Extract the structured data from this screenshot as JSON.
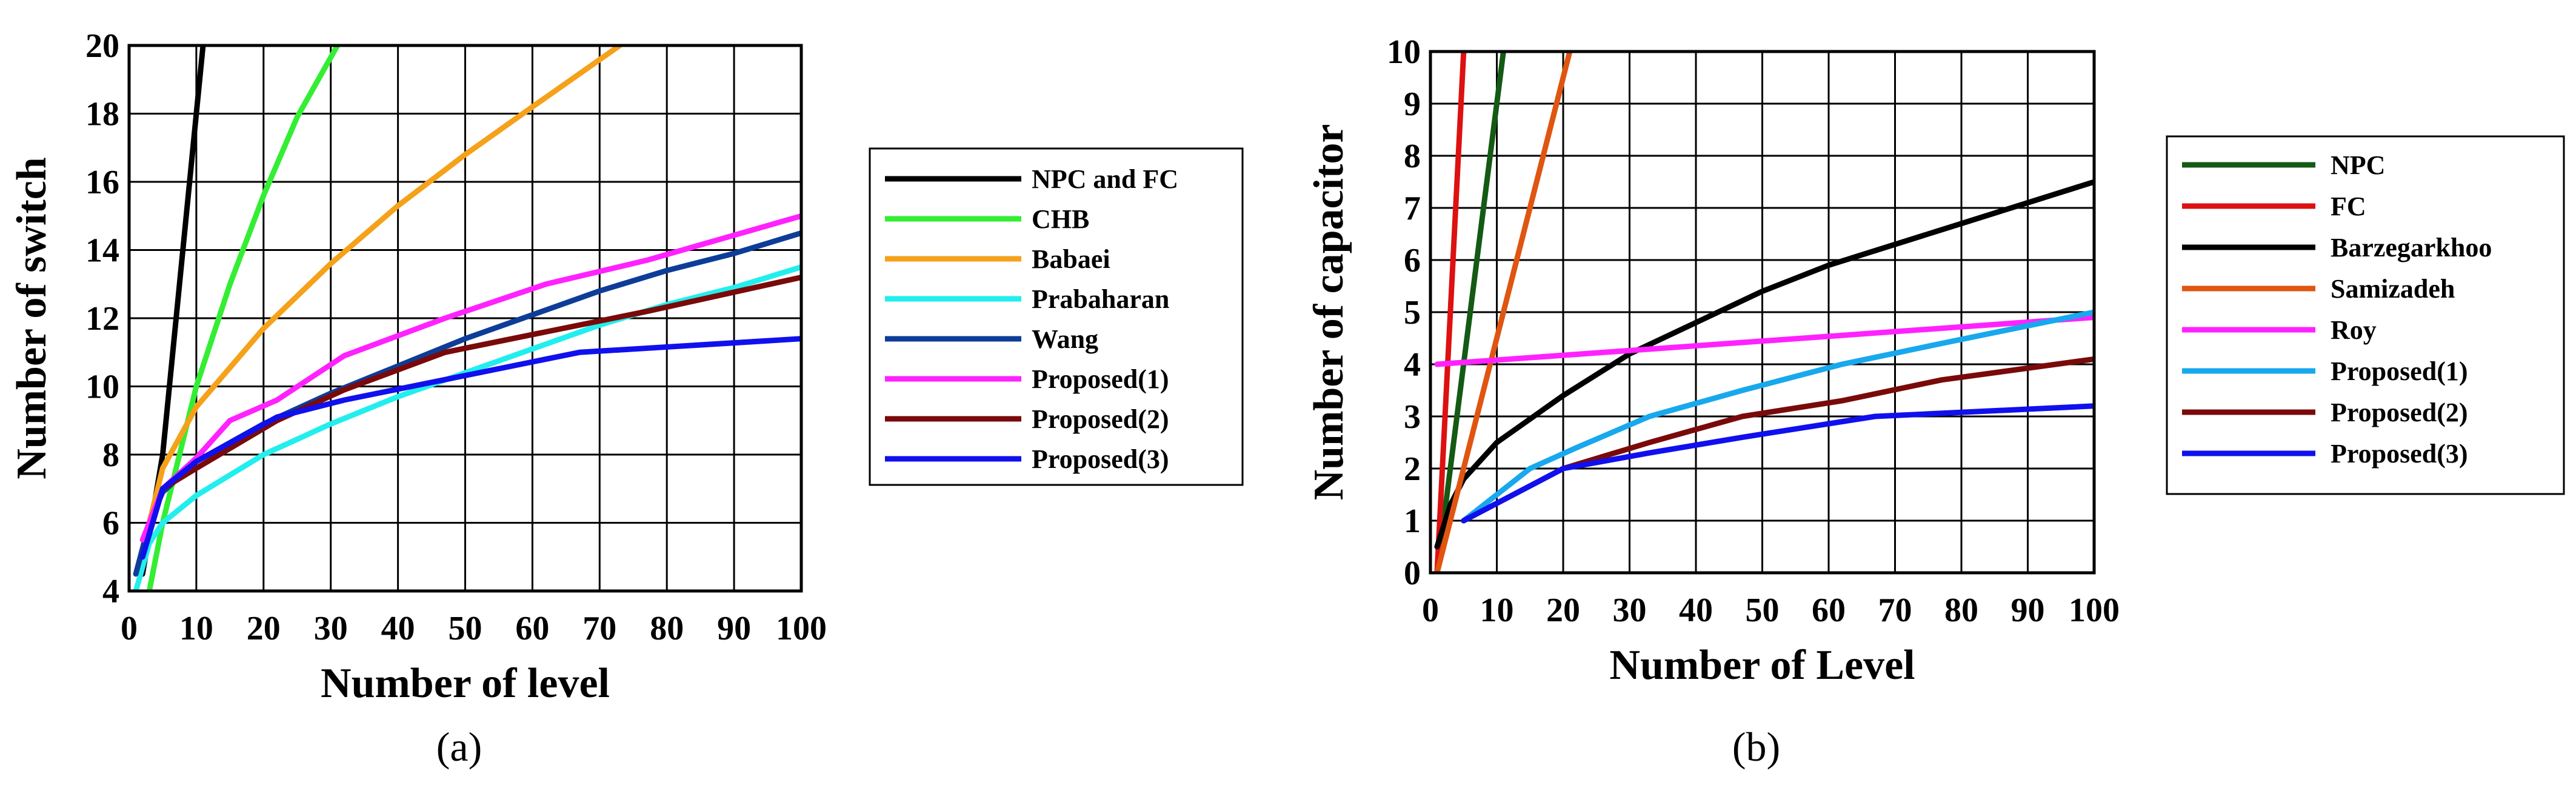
{
  "chart_data": [
    {
      "panel": "(a)",
      "type": "line",
      "xlabel": "Number of level",
      "ylabel": "Number of switch",
      "xlim": [
        0,
        100
      ],
      "ylim": [
        4,
        20
      ],
      "xticks": [
        0,
        10,
        20,
        30,
        40,
        50,
        60,
        70,
        80,
        90,
        100
      ],
      "yticks": [
        4,
        6,
        8,
        10,
        12,
        14,
        16,
        18,
        20
      ],
      "grid": true,
      "legend_position": "right",
      "series": [
        {
          "name": "NPC and FC",
          "color": "#000000",
          "points": [
            [
              2,
              4.5
            ],
            [
              5,
              8
            ],
            [
              8,
              14
            ],
            [
              11,
              20
            ]
          ]
        },
        {
          "name": "CHB",
          "color": "#33ee33",
          "points": [
            [
              3,
              4
            ],
            [
              5,
              6
            ],
            [
              10,
              10
            ],
            [
              15,
              13
            ],
            [
              20,
              15.6
            ],
            [
              25,
              17.9
            ],
            [
              31,
              20
            ]
          ]
        },
        {
          "name": "Babaei",
          "color": "#f5a11a",
          "points": [
            [
              3,
              6
            ],
            [
              5,
              7.6
            ],
            [
              10,
              9.4
            ],
            [
              20,
              11.7
            ],
            [
              30,
              13.6
            ],
            [
              40,
              15.3
            ],
            [
              50,
              16.8
            ],
            [
              60,
              18.2
            ],
            [
              73,
              20
            ]
          ]
        },
        {
          "name": "Prabaharan",
          "color": "#22eeee",
          "points": [
            [
              1,
              4
            ],
            [
              3,
              5.4
            ],
            [
              5,
              6
            ],
            [
              10,
              6.8
            ],
            [
              20,
              8
            ],
            [
              30,
              8.9
            ],
            [
              40,
              9.7
            ],
            [
              50,
              10.4
            ],
            [
              60,
              11.1
            ],
            [
              70,
              11.8
            ],
            [
              80,
              12.4
            ],
            [
              90,
              12.9
            ],
            [
              100,
              13.5
            ]
          ]
        },
        {
          "name": "Wang",
          "color": "#0d3d99",
          "points": [
            [
              1,
              4.5
            ],
            [
              3,
              6
            ],
            [
              5,
              6.9
            ],
            [
              10,
              7.8
            ],
            [
              20,
              8.9
            ],
            [
              30,
              9.8
            ],
            [
              40,
              10.6
            ],
            [
              50,
              11.4
            ],
            [
              60,
              12.1
            ],
            [
              70,
              12.8
            ],
            [
              80,
              13.4
            ],
            [
              90,
              13.9
            ],
            [
              100,
              14.5
            ]
          ]
        },
        {
          "name": "Proposed(1)",
          "color": "#ff22ff",
          "points": [
            [
              2,
              5.5
            ],
            [
              5,
              7
            ],
            [
              10,
              7.9
            ],
            [
              15,
              9
            ],
            [
              22,
              9.6
            ],
            [
              32,
              10.9
            ],
            [
              47,
              12
            ],
            [
              62,
              13
            ],
            [
              77,
              13.7
            ],
            [
              100,
              15
            ]
          ]
        },
        {
          "name": "Proposed(2)",
          "color": "#7a0a0a",
          "points": [
            [
              2,
              5
            ],
            [
              5,
              7
            ],
            [
              10,
              7.6
            ],
            [
              22,
              9
            ],
            [
              32,
              9.9
            ],
            [
              47,
              11
            ],
            [
              62,
              11.6
            ],
            [
              77,
              12.2
            ],
            [
              100,
              13.2
            ]
          ]
        },
        {
          "name": "Proposed(3)",
          "color": "#1010ee",
          "points": [
            [
              2,
              5
            ],
            [
              5,
              7
            ],
            [
              10,
              7.8
            ],
            [
              22,
              9.1
            ],
            [
              32,
              9.6
            ],
            [
              47,
              10.2
            ],
            [
              67,
              11
            ],
            [
              100,
              11.4
            ]
          ]
        }
      ]
    },
    {
      "panel": "(b)",
      "type": "line",
      "xlabel": "Number of Level",
      "ylabel": "Number of capacitor",
      "xlim": [
        0,
        100
      ],
      "ylim": [
        0,
        10
      ],
      "xticks": [
        0,
        10,
        20,
        30,
        40,
        50,
        60,
        70,
        80,
        90,
        100
      ],
      "yticks": [
        0,
        1,
        2,
        3,
        4,
        5,
        6,
        7,
        8,
        9,
        10
      ],
      "grid": true,
      "legend_position": "right",
      "series": [
        {
          "name": "NPC",
          "color": "#145a14",
          "points": [
            [
              1,
              0
            ],
            [
              11,
              10
            ]
          ]
        },
        {
          "name": "FC",
          "color": "#dd1111",
          "points": [
            [
              1,
              0
            ],
            [
              5,
              10
            ]
          ]
        },
        {
          "name": "Barzegarkhoo",
          "color": "#000000",
          "points": [
            [
              1,
              0.5
            ],
            [
              3,
              1.3
            ],
            [
              5,
              1.8
            ],
            [
              10,
              2.5
            ],
            [
              20,
              3.4
            ],
            [
              30,
              4.2
            ],
            [
              40,
              4.8
            ],
            [
              50,
              5.4
            ],
            [
              60,
              5.9
            ],
            [
              70,
              6.3
            ],
            [
              80,
              6.7
            ],
            [
              90,
              7.1
            ],
            [
              100,
              7.5
            ]
          ]
        },
        {
          "name": "Samizadeh",
          "color": "#e05510",
          "points": [
            [
              1,
              0
            ],
            [
              21,
              10
            ]
          ]
        },
        {
          "name": "Roy",
          "color": "#ff22ff",
          "points": [
            [
              1,
              4
            ],
            [
              100,
              4.9
            ]
          ]
        },
        {
          "name": "Proposed(1)",
          "color": "#18a8ee",
          "points": [
            [
              5,
              1
            ],
            [
              15,
              2
            ],
            [
              22,
              2.4
            ],
            [
              33,
              3
            ],
            [
              47,
              3.5
            ],
            [
              62,
              4
            ],
            [
              77,
              4.4
            ],
            [
              100,
              5
            ]
          ]
        },
        {
          "name": "Proposed(2)",
          "color": "#7a0a0a",
          "points": [
            [
              5,
              1
            ],
            [
              20,
              2
            ],
            [
              33,
              2.5
            ],
            [
              47,
              3
            ],
            [
              62,
              3.3
            ],
            [
              77,
              3.7
            ],
            [
              100,
              4.1
            ]
          ]
        },
        {
          "name": "Proposed(3)",
          "color": "#1010ee",
          "points": [
            [
              5,
              1
            ],
            [
              20,
              2
            ],
            [
              33,
              2.3
            ],
            [
              47,
              2.6
            ],
            [
              67,
              3
            ],
            [
              100,
              3.2
            ]
          ]
        }
      ]
    }
  ]
}
